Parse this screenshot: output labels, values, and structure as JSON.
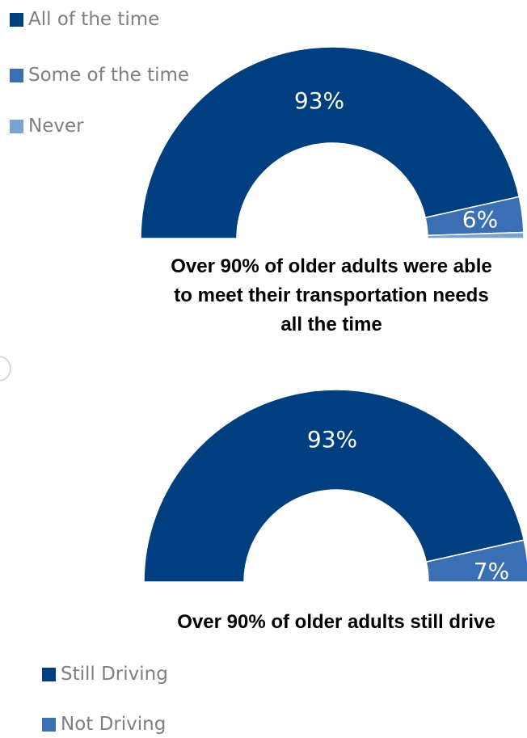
{
  "chart_data": [
    {
      "type": "pie",
      "variant": "half-donut",
      "categories": [
        "All of the time",
        "Some of the time",
        "Never"
      ],
      "values": [
        93,
        6,
        1
      ],
      "data_labels": [
        "93%",
        "6%",
        ""
      ],
      "colors": [
        "#003f7f",
        "#3a70b3",
        "#7aa3cf"
      ],
      "legend": "top-left",
      "title": "Over 90% of older adults were able to meet their transportation needs all the time"
    },
    {
      "type": "pie",
      "variant": "half-donut",
      "categories": [
        "Still Driving",
        "Not Driving"
      ],
      "values": [
        93,
        7
      ],
      "data_labels": [
        "93%",
        "7%"
      ],
      "colors": [
        "#003f7f",
        "#3a70b3"
      ],
      "legend": "bottom-left",
      "title": "Over 90% of older adults still drive"
    }
  ]
}
